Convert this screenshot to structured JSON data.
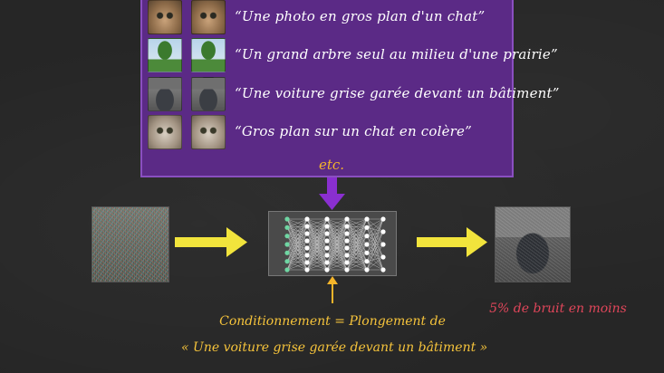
{
  "panel": {
    "rows": [
      {
        "caption": "“Une photo en gros plan d'un chat”",
        "thumb_a": "cat-photo-1",
        "thumb_b": "cat-photo-2"
      },
      {
        "caption": "“Un grand arbre seul au milieu d'une prairie”",
        "thumb_a": "tree-photo-1",
        "thumb_b": "tree-photo-2"
      },
      {
        "caption": "“Une voiture grise garée devant un bâtiment”",
        "thumb_a": "car-photo-1",
        "thumb_b": "car-photo-2"
      },
      {
        "caption": "“Gros plan sur un chat en colère”",
        "thumb_a": "angry-cat-photo-1",
        "thumb_b": "angry-cat-photo-2"
      }
    ],
    "etc_label": "etc."
  },
  "conditioning": {
    "line1": "Conditionnement = Plongement de",
    "line2": "« Une voiture grise garée devant un bâtiment »"
  },
  "result_caption": "5% de bruit en moins",
  "colors": {
    "background": "#262626",
    "panel": "#5b2a86",
    "panel_arrow": "#8a2fd0",
    "yellow_arrow": "#f2e43c",
    "conditioning_text": "#f5c33b",
    "etc_text": "#f5b52a",
    "result_text": "#e0465a",
    "caption_text": "#ffffff"
  }
}
